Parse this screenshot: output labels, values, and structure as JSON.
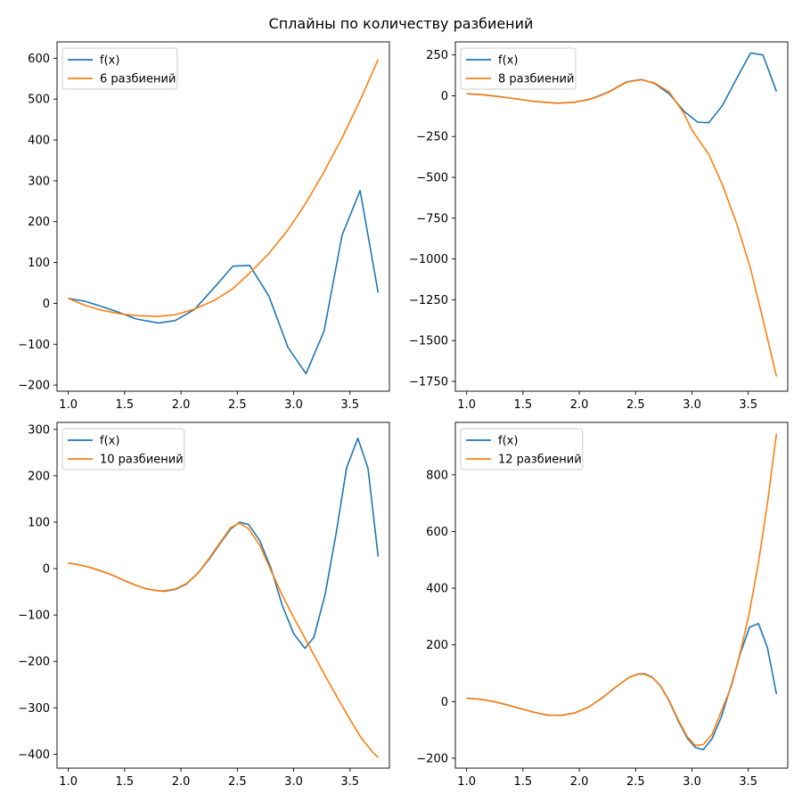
{
  "figure": {
    "title": "Сплайны по количеству разбиений"
  },
  "colors": {
    "fx": "#1f77b4",
    "spline": "#ff7f0e"
  },
  "chart_data": [
    {
      "type": "line",
      "xlim": [
        0.9,
        3.85
      ],
      "ylim": [
        -215,
        640
      ],
      "xticks": [
        1.0,
        1.5,
        2.0,
        2.5,
        3.0,
        3.5
      ],
      "xtick_labels": [
        "1.0",
        "1.5",
        "2.0",
        "2.5",
        "3.0",
        "3.5"
      ],
      "yticks": [
        -200,
        -100,
        0,
        100,
        200,
        300,
        400,
        500,
        600
      ],
      "ytick_labels": [
        "−200",
        "−100",
        "0",
        "100",
        "200",
        "300",
        "400",
        "500",
        "600"
      ],
      "legend_position": "top-left",
      "series": [
        {
          "name": "f(x)",
          "x": [
            1.0,
            1.15,
            1.3,
            1.45,
            1.6,
            1.8,
            1.95,
            2.12,
            2.3,
            2.46,
            2.61,
            2.78,
            2.95,
            3.11,
            3.27,
            3.43,
            3.59,
            3.75
          ],
          "y": [
            12,
            5,
            -8,
            -22,
            -38,
            -48,
            -42,
            -15,
            40,
            91,
            93,
            18,
            -108,
            -172,
            -68,
            167,
            276,
            26
          ]
        },
        {
          "name": "6 разбиений",
          "x": [
            1.0,
            1.15,
            1.3,
            1.45,
            1.6,
            1.8,
            1.95,
            2.12,
            2.3,
            2.46,
            2.61,
            2.78,
            2.95,
            3.11,
            3.27,
            3.43,
            3.59,
            3.75
          ],
          "y": [
            12,
            -5,
            -17,
            -25,
            -30,
            -32,
            -28,
            -14,
            8,
            36,
            74,
            122,
            180,
            246,
            322,
            405,
            497,
            597
          ]
        }
      ]
    },
    {
      "type": "line",
      "xlim": [
        0.9,
        3.85
      ],
      "ylim": [
        -1810,
        330
      ],
      "xticks": [
        1.0,
        1.5,
        2.0,
        2.5,
        3.0,
        3.5
      ],
      "xtick_labels": [
        "1.0",
        "1.5",
        "2.0",
        "2.5",
        "3.0",
        "3.5"
      ],
      "yticks": [
        -1750,
        -1500,
        -1250,
        -1000,
        -750,
        -500,
        -250,
        0,
        250
      ],
      "ytick_labels": [
        "−1750",
        "−1500",
        "−1250",
        "−1000",
        "−750",
        "−500",
        "−250",
        "0",
        "250"
      ],
      "legend_position": "top-left",
      "series": [
        {
          "name": "f(x)",
          "x": [
            1.0,
            1.15,
            1.3,
            1.45,
            1.6,
            1.8,
            1.95,
            2.1,
            2.25,
            2.42,
            2.55,
            2.67,
            2.8,
            2.93,
            3.05,
            3.15,
            3.27,
            3.4,
            3.52,
            3.63,
            3.75
          ],
          "y": [
            12,
            6,
            -6,
            -20,
            -35,
            -46,
            -40,
            -20,
            20,
            85,
            100,
            75,
            10,
            -95,
            -162,
            -165,
            -60,
            110,
            262,
            250,
            26
          ]
        },
        {
          "name": "8 разбиений",
          "x": [
            1.0,
            1.15,
            1.3,
            1.45,
            1.6,
            1.8,
            1.95,
            2.1,
            2.25,
            2.42,
            2.55,
            2.67,
            2.8,
            2.93,
            3.0,
            3.15,
            3.27,
            3.4,
            3.52,
            3.63,
            3.75
          ],
          "y": [
            12,
            5,
            -6,
            -20,
            -35,
            -45,
            -40,
            -22,
            18,
            83,
            98,
            78,
            22,
            -110,
            -210,
            -360,
            -545,
            -790,
            -1060,
            -1370,
            -1720
          ]
        }
      ]
    },
    {
      "type": "line",
      "xlim": [
        0.9,
        3.85
      ],
      "ylim": [
        -430,
        315
      ],
      "xticks": [
        1.0,
        1.5,
        2.0,
        2.5,
        3.0,
        3.5
      ],
      "xtick_labels": [
        "1.0",
        "1.5",
        "2.0",
        "2.5",
        "3.0",
        "3.5"
      ],
      "yticks": [
        -400,
        -300,
        -200,
        -100,
        0,
        100,
        200,
        300
      ],
      "ytick_labels": [
        "−400",
        "−300",
        "−200",
        "−100",
        "0",
        "100",
        "200",
        "300"
      ],
      "legend_position": "top-left",
      "series": [
        {
          "name": "f(x)",
          "x": [
            1.0,
            1.1,
            1.2,
            1.3,
            1.4,
            1.5,
            1.6,
            1.7,
            1.8,
            1.85,
            1.95,
            2.05,
            2.15,
            2.25,
            2.35,
            2.44,
            2.52,
            2.6,
            2.7,
            2.8,
            2.9,
            3.0,
            3.1,
            3.18,
            3.28,
            3.38,
            3.47,
            3.57,
            3.66,
            3.75
          ],
          "y": [
            12,
            8,
            2,
            -6,
            -15,
            -26,
            -36,
            -44,
            -48,
            -49,
            -45,
            -33,
            -10,
            20,
            55,
            85,
            100,
            95,
            60,
            0,
            -80,
            -140,
            -172,
            -148,
            -55,
            80,
            217,
            281,
            216,
            26
          ]
        },
        {
          "name": "10 разбиений",
          "x": [
            1.0,
            1.1,
            1.2,
            1.3,
            1.4,
            1.5,
            1.6,
            1.7,
            1.8,
            1.85,
            1.95,
            2.05,
            2.15,
            2.25,
            2.35,
            2.44,
            2.52,
            2.6,
            2.7,
            2.8,
            2.9,
            3.0,
            3.1,
            3.2,
            3.3,
            3.4,
            3.5,
            3.6,
            3.7,
            3.75
          ],
          "y": [
            12,
            8,
            2,
            -6,
            -15,
            -26,
            -36,
            -44,
            -48,
            -48,
            -44,
            -32,
            -10,
            22,
            57,
            88,
            98,
            86,
            50,
            -5,
            -58,
            -105,
            -150,
            -195,
            -240,
            -283,
            -325,
            -365,
            -395,
            -407
          ]
        }
      ]
    },
    {
      "type": "line",
      "xlim": [
        0.9,
        3.85
      ],
      "ylim": [
        -235,
        985
      ],
      "xticks": [
        1.0,
        1.5,
        2.0,
        2.5,
        3.0,
        3.5
      ],
      "xtick_labels": [
        "1.0",
        "1.5",
        "2.0",
        "2.5",
        "3.0",
        "3.5"
      ],
      "yticks": [
        -200,
        0,
        200,
        400,
        600,
        800
      ],
      "ytick_labels": [
        "−200",
        "0",
        "200",
        "400",
        "600",
        "800"
      ],
      "legend_position": "top-left",
      "series": [
        {
          "name": "f(x)",
          "x": [
            1.0,
            1.12,
            1.24,
            1.36,
            1.48,
            1.6,
            1.72,
            1.84,
            1.96,
            2.08,
            2.2,
            2.32,
            2.44,
            2.52,
            2.58,
            2.65,
            2.72,
            2.8,
            2.88,
            2.96,
            3.03,
            3.1,
            3.18,
            3.26,
            3.35,
            3.43,
            3.51,
            3.59,
            3.67,
            3.75
          ],
          "y": [
            12,
            8,
            0,
            -12,
            -25,
            -38,
            -48,
            -49,
            -40,
            -20,
            12,
            50,
            85,
            97,
            98,
            85,
            55,
            0,
            -70,
            -130,
            -162,
            -170,
            -130,
            -55,
            60,
            170,
            262,
            275,
            190,
            26
          ]
        },
        {
          "name": "12 разбиений",
          "x": [
            1.0,
            1.12,
            1.24,
            1.36,
            1.48,
            1.6,
            1.72,
            1.84,
            1.96,
            2.08,
            2.2,
            2.32,
            2.44,
            2.52,
            2.58,
            2.65,
            2.72,
            2.8,
            2.88,
            2.96,
            3.03,
            3.1,
            3.18,
            3.26,
            3.35,
            3.43,
            3.51,
            3.59,
            3.67,
            3.75
          ],
          "y": [
            12,
            8,
            0,
            -12,
            -25,
            -38,
            -48,
            -49,
            -40,
            -20,
            12,
            50,
            85,
            96,
            96,
            84,
            56,
            2,
            -66,
            -125,
            -155,
            -152,
            -115,
            -35,
            55,
            175,
            315,
            490,
            700,
            945
          ]
        }
      ]
    }
  ]
}
